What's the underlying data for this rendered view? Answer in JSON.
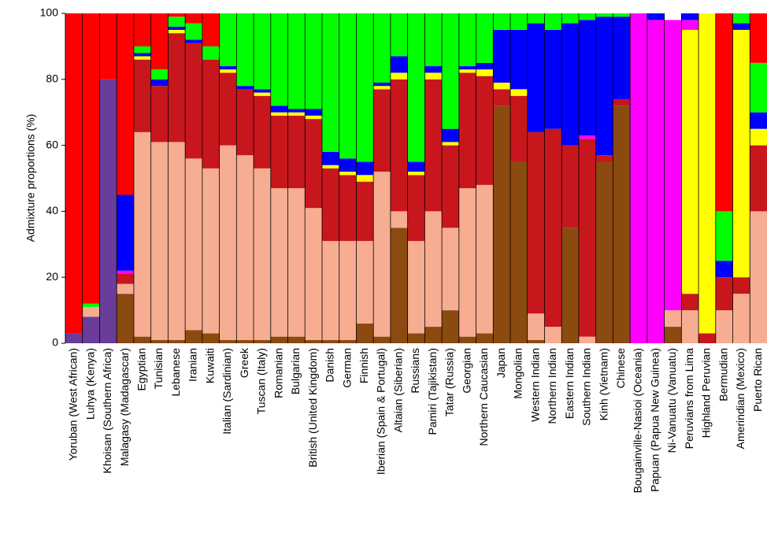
{
  "chart_data": {
    "type": "stacked_bar",
    "ylabel": "Admixture proportions (%)",
    "categories": [
      "Yoruban (West African)",
      "Luhya (Kenya)",
      "Khoisan (Southern Africa)",
      "Malagasy (Madagascar)",
      "Egyptian",
      "Tunisian",
      "Lebanese",
      "Iranian",
      "Kuwaiti",
      "Italian (Sardinian)",
      "Greek",
      "Tuscan (Italy)",
      "Romanian",
      "Bulgarian",
      "British (United Kingdom)",
      "Danish",
      "German",
      "Finnish",
      "Iberian (Spain & Portugal)",
      "Altaian (Siberian)",
      "Russians",
      "Pamiri (Tajikistan)",
      "Tatar (Russia)",
      "Georgian",
      "Northern Caucasian",
      "Japan",
      "Mongolian",
      "Western Indian",
      "Northern Indian",
      "Eastern Indian",
      "Southern Indian",
      "Kinh (Vietnam)",
      "Chinese",
      "Bougainville-Nasioi (Oceania)",
      "Papuan (Papua New Guinea)",
      "Ni-Vanuatu (Vanuatu)",
      "Peruvians from Lima",
      "Highland Peruvian",
      "Bermudian",
      "Amerindian (Mexico)",
      "Puerto Rican"
    ],
    "series": [
      {
        "color": "#6a3d9a",
        "values": [
          3,
          8,
          80,
          0,
          0,
          0,
          0,
          0,
          0,
          0,
          0,
          0,
          0,
          0,
          0,
          0,
          0,
          0,
          0,
          0,
          0,
          0,
          0,
          0,
          0,
          0,
          0,
          0,
          0,
          0,
          0,
          0,
          0,
          0,
          0,
          0,
          0,
          0,
          0,
          0,
          0
        ]
      },
      {
        "color": "#8b4a0f",
        "values": [
          0,
          0,
          0,
          15,
          2,
          1,
          1,
          4,
          3,
          1,
          1,
          1,
          2,
          2,
          1,
          1,
          1,
          6,
          2,
          35,
          3,
          5,
          10,
          2,
          3,
          72,
          55,
          1,
          0,
          35,
          0,
          55,
          72,
          0,
          0,
          5,
          0,
          0,
          0,
          0,
          0
        ]
      },
      {
        "color": "#f7ad92",
        "values": [
          0,
          3,
          0,
          3,
          62,
          60,
          60,
          52,
          50,
          59,
          56,
          52,
          45,
          45,
          40,
          30,
          30,
          25,
          50,
          5,
          28,
          35,
          25,
          45,
          45,
          0,
          0,
          8,
          5,
          0,
          2,
          0,
          0,
          0,
          0,
          5,
          10,
          0,
          10,
          15,
          40
        ]
      },
      {
        "color": "#c8161d",
        "values": [
          0,
          0,
          0,
          3,
          22,
          17,
          33,
          35,
          33,
          22,
          20,
          22,
          22,
          22,
          27,
          22,
          20,
          18,
          25,
          40,
          20,
          40,
          25,
          35,
          33,
          5,
          20,
          55,
          60,
          25,
          60,
          2,
          2,
          0,
          0,
          0,
          5,
          3,
          10,
          5,
          20
        ]
      },
      {
        "color": "#ffff00",
        "values": [
          0,
          0,
          0,
          0,
          1,
          0,
          1,
          0,
          0,
          1,
          0,
          1,
          1,
          1,
          1,
          1,
          1,
          2,
          1,
          2,
          1,
          2,
          1,
          1,
          2,
          2,
          2,
          0,
          0,
          0,
          0,
          0,
          0,
          0,
          0,
          0,
          80,
          97,
          0,
          75,
          5
        ]
      },
      {
        "color": "#ff00ff",
        "values": [
          0,
          0,
          0,
          1,
          0,
          0,
          0,
          0,
          0,
          0,
          0,
          0,
          0,
          0,
          0,
          0,
          0,
          0,
          0,
          0,
          0,
          0,
          0,
          0,
          0,
          0,
          0,
          0,
          0,
          0,
          1,
          0,
          0,
          100,
          98,
          88,
          3,
          0,
          0,
          0,
          0
        ]
      },
      {
        "color": "#0000ff",
        "values": [
          0,
          0,
          0,
          23,
          1,
          2,
          1,
          1,
          0,
          1,
          1,
          1,
          2,
          1,
          2,
          4,
          4,
          4,
          1,
          5,
          3,
          2,
          4,
          1,
          2,
          16,
          18,
          33,
          30,
          37,
          35,
          42,
          25,
          0,
          2,
          0,
          2,
          0,
          5,
          2,
          5
        ]
      },
      {
        "color": "#00ff00",
        "values": [
          0,
          1,
          0,
          0,
          2,
          3,
          3,
          5,
          4,
          16,
          22,
          23,
          28,
          29,
          29,
          42,
          44,
          45,
          21,
          13,
          45,
          16,
          35,
          16,
          15,
          5,
          5,
          3,
          5,
          3,
          2,
          1,
          1,
          0,
          0,
          0,
          0,
          0,
          15,
          3,
          15
        ]
      },
      {
        "color": "#ff0000",
        "values": [
          97,
          88,
          20,
          55,
          10,
          17,
          1,
          3,
          10,
          0,
          0,
          0,
          0,
          0,
          0,
          0,
          0,
          0,
          0,
          0,
          0,
          0,
          0,
          0,
          0,
          0,
          0,
          0,
          0,
          0,
          0,
          0,
          0,
          0,
          0,
          0,
          0,
          0,
          60,
          0,
          15
        ]
      }
    ],
    "ylim": [
      0,
      100
    ],
    "yticks": [
      0,
      20,
      40,
      60,
      80,
      100
    ]
  }
}
